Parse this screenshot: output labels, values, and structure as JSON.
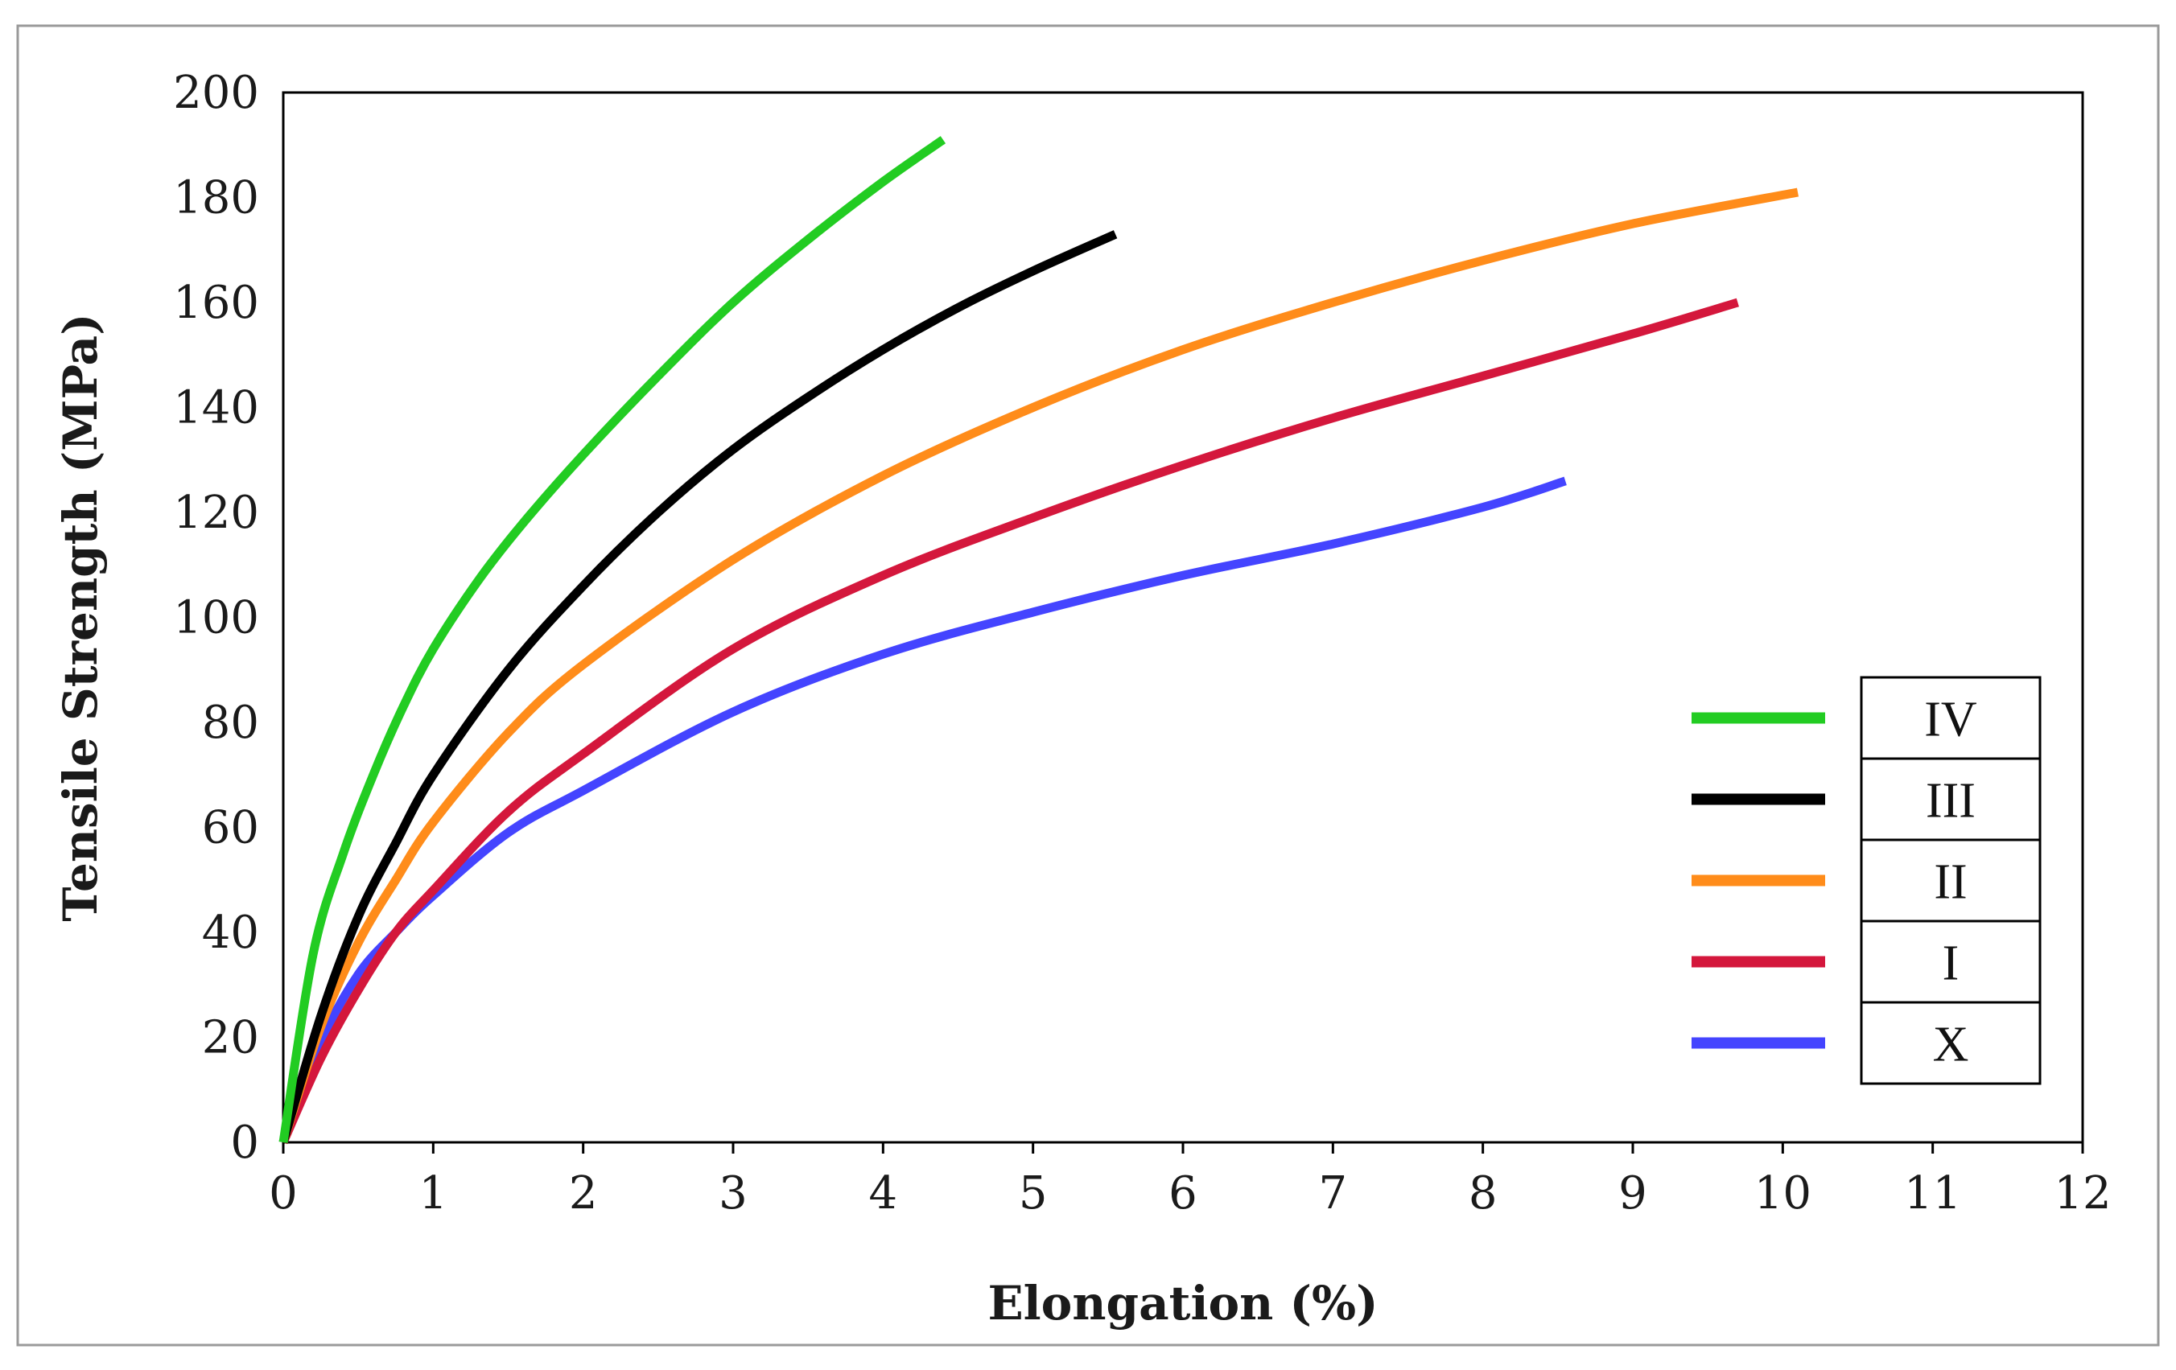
{
  "chart_data": {
    "type": "line",
    "title": "",
    "xlabel": "Elongation (%)",
    "ylabel": "Tensile Strength (MPa)",
    "xlim": [
      0,
      12
    ],
    "ylim": [
      0,
      200
    ],
    "xticks": [
      0,
      1,
      2,
      3,
      4,
      5,
      6,
      7,
      8,
      9,
      10,
      11,
      12
    ],
    "yticks": [
      0,
      20,
      40,
      60,
      80,
      100,
      120,
      140,
      160,
      180,
      200
    ],
    "grid": false,
    "legend_position": "bottom-right",
    "series": [
      {
        "name": "IV",
        "color": "#22cc22",
        "x": [
          0,
          0.2,
          0.4,
          0.6,
          0.8,
          1.0,
          1.3,
          1.6,
          2.0,
          2.5,
          3.0,
          3.5,
          4.0,
          4.4
        ],
        "y": [
          0,
          36,
          55,
          70,
          83,
          94,
          107,
          118,
          131,
          146,
          160,
          172,
          183,
          191
        ]
      },
      {
        "name": "III",
        "color": "#000000",
        "x": [
          0,
          0.25,
          0.5,
          0.75,
          1.0,
          1.5,
          2.0,
          2.5,
          3.0,
          3.5,
          4.0,
          4.5,
          5.0,
          5.55
        ],
        "y": [
          0,
          24,
          43,
          57,
          70,
          90,
          106,
          120,
          132,
          142,
          151,
          159,
          166,
          173
        ]
      },
      {
        "name": "II",
        "color": "#ff8c1a",
        "x": [
          0,
          0.25,
          0.5,
          0.75,
          1.0,
          1.5,
          2.0,
          3.0,
          4.0,
          5.0,
          6.0,
          7.0,
          8.0,
          9.0,
          10.1
        ],
        "y": [
          0,
          22,
          38,
          50,
          61,
          78,
          91,
          111,
          127,
          140,
          151,
          160,
          168,
          175,
          181
        ]
      },
      {
        "name": "I",
        "color": "#d4173c",
        "x": [
          0,
          0.25,
          0.5,
          0.75,
          1.0,
          1.5,
          2.0,
          3.0,
          4.0,
          5.0,
          6.0,
          7.0,
          8.0,
          9.0,
          9.7
        ],
        "y": [
          0,
          16,
          29,
          40,
          48,
          63,
          74,
          94,
          108,
          119,
          129,
          138,
          146,
          154,
          160
        ]
      },
      {
        "name": "X",
        "color": "#4444ff",
        "x": [
          0,
          0.25,
          0.5,
          0.75,
          1.0,
          1.5,
          2.0,
          3.0,
          4.0,
          5.0,
          6.0,
          7.0,
          8.0,
          8.55
        ],
        "y": [
          0,
          19,
          32,
          40,
          47,
          59,
          67,
          82,
          93,
          101,
          108,
          114,
          121,
          126
        ]
      }
    ]
  }
}
